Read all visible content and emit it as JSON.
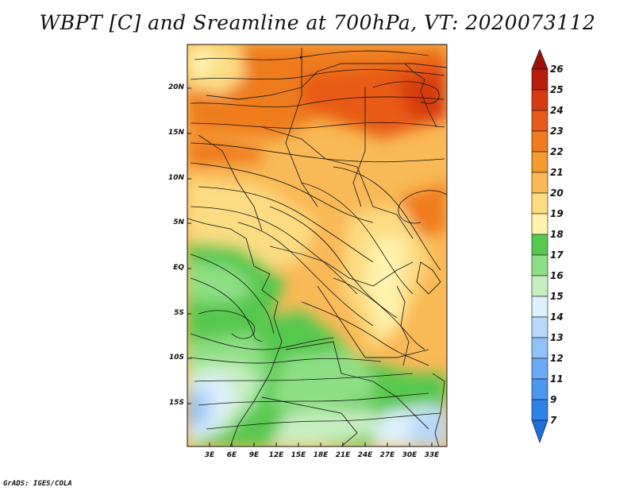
{
  "title": "WBPT [C] and Sreamline at 700hPa, VT: 2020073112",
  "credit": "GrADS: IGES/COLA",
  "latitude_labels": [
    "20N",
    "15N",
    "10N",
    "5N",
    "EQ",
    "5S",
    "10S",
    "15S"
  ],
  "longitude_labels": [
    "3E",
    "6E",
    "9E",
    "12E",
    "15E",
    "18E",
    "21E",
    "24E",
    "27E",
    "30E",
    "33E"
  ],
  "colorbar": {
    "levels": [
      "7",
      "9",
      "11",
      "12",
      "13",
      "14",
      "15",
      "16",
      "17",
      "18",
      "19",
      "20",
      "21",
      "22",
      "23",
      "24",
      "25",
      "26"
    ],
    "colors": [
      "#1e6fd9",
      "#2d82e6",
      "#4b96ee",
      "#6aabf3",
      "#90c2f6",
      "#b7d8f9",
      "#def0fb",
      "#c6eec0",
      "#8edf84",
      "#56c84e",
      "#fff3ad",
      "#fcdc83",
      "#f9b956",
      "#f49a2e",
      "#ef7b1f",
      "#e85a17",
      "#d63a10",
      "#b71f0c",
      "#9c1208"
    ]
  }
}
